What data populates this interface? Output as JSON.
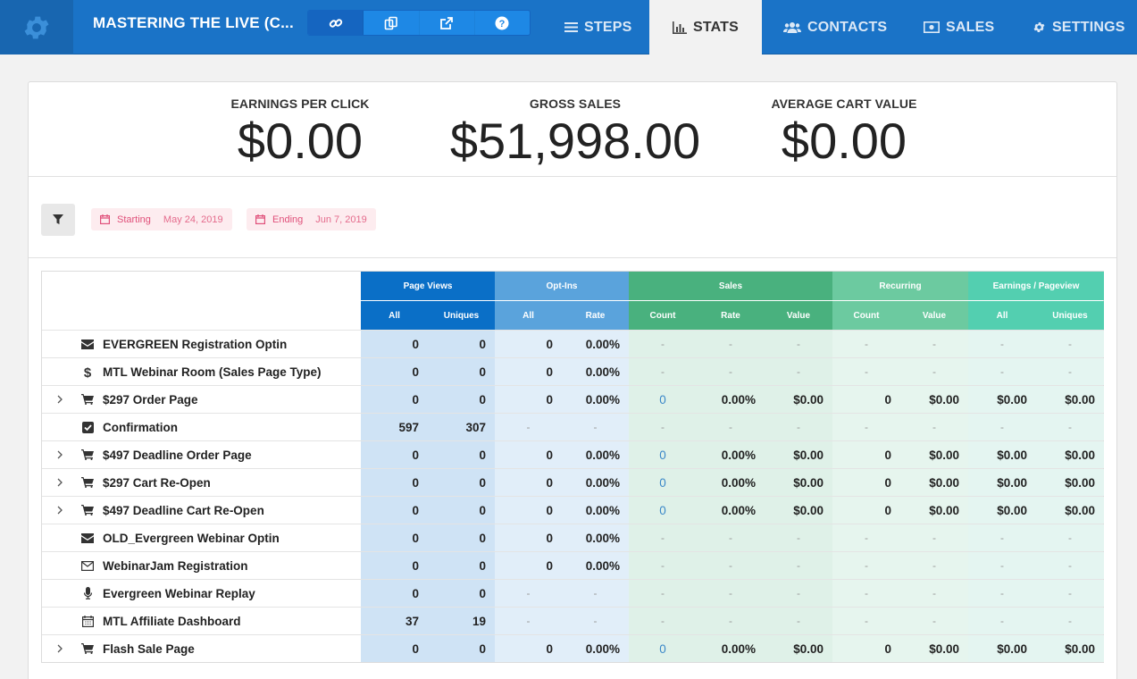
{
  "header": {
    "funnel_title": "MASTERING THE LIVE (C...",
    "nav": [
      {
        "label": "STEPS",
        "icon": "list-icon"
      },
      {
        "label": "STATS",
        "icon": "bar-chart-icon",
        "active": true
      },
      {
        "label": "CONTACTS",
        "icon": "users-icon"
      },
      {
        "label": "SALES",
        "icon": "money-icon"
      },
      {
        "label": "SETTINGS",
        "icon": "gear-icon"
      }
    ],
    "icon_buttons": [
      "link-icon",
      "copy-icon",
      "external-link-icon",
      "help-icon"
    ]
  },
  "summary": {
    "epc_label": "EARNINGS PER CLICK",
    "epc_value": "$0.00",
    "gross_label": "GROSS SALES",
    "gross_value": "$51,998.00",
    "acv_label": "AVERAGE CART VALUE",
    "acv_value": "$0.00"
  },
  "filters": {
    "start_label": "Starting",
    "start_value": "May 24, 2019",
    "end_label": "Ending",
    "end_value": "Jun 7, 2019"
  },
  "table": {
    "groups": {
      "page_views": "Page Views",
      "opt_ins": "Opt-Ins",
      "sales": "Sales",
      "recurring": "Recurring",
      "earnings": "Earnings / Pageview"
    },
    "subheaders": {
      "pv_all": "All",
      "pv_uniques": "Uniques",
      "oi_all": "All",
      "oi_rate": "Rate",
      "s_count": "Count",
      "s_rate": "Rate",
      "s_value": "Value",
      "r_count": "Count",
      "r_value": "Value",
      "e_all": "All",
      "e_uniques": "Uniques"
    },
    "rows": [
      {
        "name": "EVERGREEN Registration Optin",
        "icon": "envelope-icon",
        "expand": false,
        "cells": [
          "0",
          "0",
          "0",
          "0.00%",
          "-",
          "-",
          "-",
          "-",
          "-",
          "-",
          "-"
        ]
      },
      {
        "name": "MTL Webinar Room (Sales Page Type)",
        "icon": "dollar-icon",
        "expand": false,
        "cells": [
          "0",
          "0",
          "0",
          "0.00%",
          "-",
          "-",
          "-",
          "-",
          "-",
          "-",
          "-"
        ]
      },
      {
        "name": "$297 Order Page",
        "icon": "cart-icon",
        "expand": true,
        "cells": [
          "0",
          "0",
          "0",
          "0.00%",
          "0",
          "0.00%",
          "$0.00",
          "0",
          "$0.00",
          "$0.00",
          "$0.00"
        ]
      },
      {
        "name": "Confirmation",
        "icon": "check-square-icon",
        "expand": false,
        "cells": [
          "597",
          "307",
          "-",
          "-",
          "-",
          "-",
          "-",
          "-",
          "-",
          "-",
          "-"
        ]
      },
      {
        "name": "$497 Deadline Order Page",
        "icon": "cart-icon",
        "expand": true,
        "cells": [
          "0",
          "0",
          "0",
          "0.00%",
          "0",
          "0.00%",
          "$0.00",
          "0",
          "$0.00",
          "$0.00",
          "$0.00"
        ]
      },
      {
        "name": "$297 Cart Re-Open",
        "icon": "cart-icon",
        "expand": true,
        "cells": [
          "0",
          "0",
          "0",
          "0.00%",
          "0",
          "0.00%",
          "$0.00",
          "0",
          "$0.00",
          "$0.00",
          "$0.00"
        ]
      },
      {
        "name": "$497 Deadline Cart Re-Open",
        "icon": "cart-icon",
        "expand": true,
        "cells": [
          "0",
          "0",
          "0",
          "0.00%",
          "0",
          "0.00%",
          "$0.00",
          "0",
          "$0.00",
          "$0.00",
          "$0.00"
        ]
      },
      {
        "name": "OLD_Evergreen Webinar Optin",
        "icon": "envelope-icon",
        "expand": false,
        "cells": [
          "0",
          "0",
          "0",
          "0.00%",
          "-",
          "-",
          "-",
          "-",
          "-",
          "-",
          "-"
        ]
      },
      {
        "name": "WebinarJam Registration",
        "icon": "envelope-outline-icon",
        "expand": false,
        "cells": [
          "0",
          "0",
          "0",
          "0.00%",
          "-",
          "-",
          "-",
          "-",
          "-",
          "-",
          "-"
        ]
      },
      {
        "name": "Evergreen Webinar Replay",
        "icon": "microphone-icon",
        "expand": false,
        "cells": [
          "0",
          "0",
          "-",
          "-",
          "-",
          "-",
          "-",
          "-",
          "-",
          "-",
          "-"
        ]
      },
      {
        "name": "MTL Affiliate Dashboard",
        "icon": "calendar-icon",
        "expand": false,
        "cells": [
          "37",
          "19",
          "-",
          "-",
          "-",
          "-",
          "-",
          "-",
          "-",
          "-",
          "-"
        ]
      },
      {
        "name": "Flash Sale Page",
        "icon": "cart-icon",
        "expand": true,
        "cells": [
          "0",
          "0",
          "0",
          "0.00%",
          "0",
          "0.00%",
          "$0.00",
          "0",
          "$0.00",
          "$0.00",
          "$0.00"
        ]
      }
    ]
  },
  "colors": {
    "nav_bg": "#1a73c7",
    "page_views": "#0a6fc7",
    "opt_ins": "#5aa3dc",
    "sales": "#49b17e",
    "recurring": "#6ccaa0",
    "earnings": "#53cfb0"
  }
}
